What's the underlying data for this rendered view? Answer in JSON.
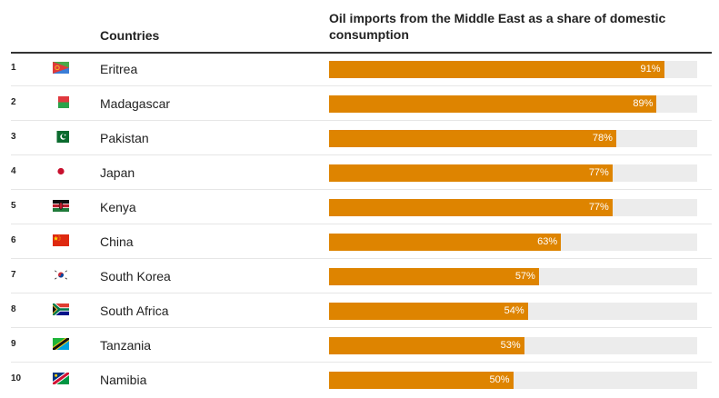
{
  "header": {
    "countries_label": "Countries",
    "metric_label": "Oil imports from the Middle East as a share of domestic consumption"
  },
  "colors": {
    "bar": "#de8400",
    "track": "#ececec"
  },
  "rows": [
    {
      "rank": "1",
      "country": "Eritrea",
      "value_label": "91%",
      "flag_icon": "eritrea-flag-icon"
    },
    {
      "rank": "2",
      "country": "Madagascar",
      "value_label": "89%",
      "flag_icon": "madagascar-flag-icon"
    },
    {
      "rank": "3",
      "country": "Pakistan",
      "value_label": "78%",
      "flag_icon": "pakistan-flag-icon"
    },
    {
      "rank": "4",
      "country": "Japan",
      "value_label": "77%",
      "flag_icon": "japan-flag-icon"
    },
    {
      "rank": "5",
      "country": "Kenya",
      "value_label": "77%",
      "flag_icon": "kenya-flag-icon"
    },
    {
      "rank": "6",
      "country": "China",
      "value_label": "63%",
      "flag_icon": "china-flag-icon"
    },
    {
      "rank": "7",
      "country": "South Korea",
      "value_label": "57%",
      "flag_icon": "south-korea-flag-icon"
    },
    {
      "rank": "8",
      "country": "South Africa",
      "value_label": "54%",
      "flag_icon": "south-africa-flag-icon"
    },
    {
      "rank": "9",
      "country": "Tanzania",
      "value_label": "53%",
      "flag_icon": "tanzania-flag-icon"
    },
    {
      "rank": "10",
      "country": "Namibia",
      "value_label": "50%",
      "flag_icon": "namibia-flag-icon"
    }
  ],
  "chart_data": {
    "type": "bar",
    "orientation": "horizontal",
    "title": "Oil imports from the Middle East as a share of domestic consumption",
    "categories": [
      "Eritrea",
      "Madagascar",
      "Pakistan",
      "Japan",
      "Kenya",
      "China",
      "South Korea",
      "South Africa",
      "Tanzania",
      "Namibia"
    ],
    "values": [
      91,
      89,
      78,
      77,
      77,
      63,
      57,
      54,
      53,
      50
    ],
    "unit": "%",
    "xlim": [
      0,
      100
    ],
    "grid": false
  }
}
